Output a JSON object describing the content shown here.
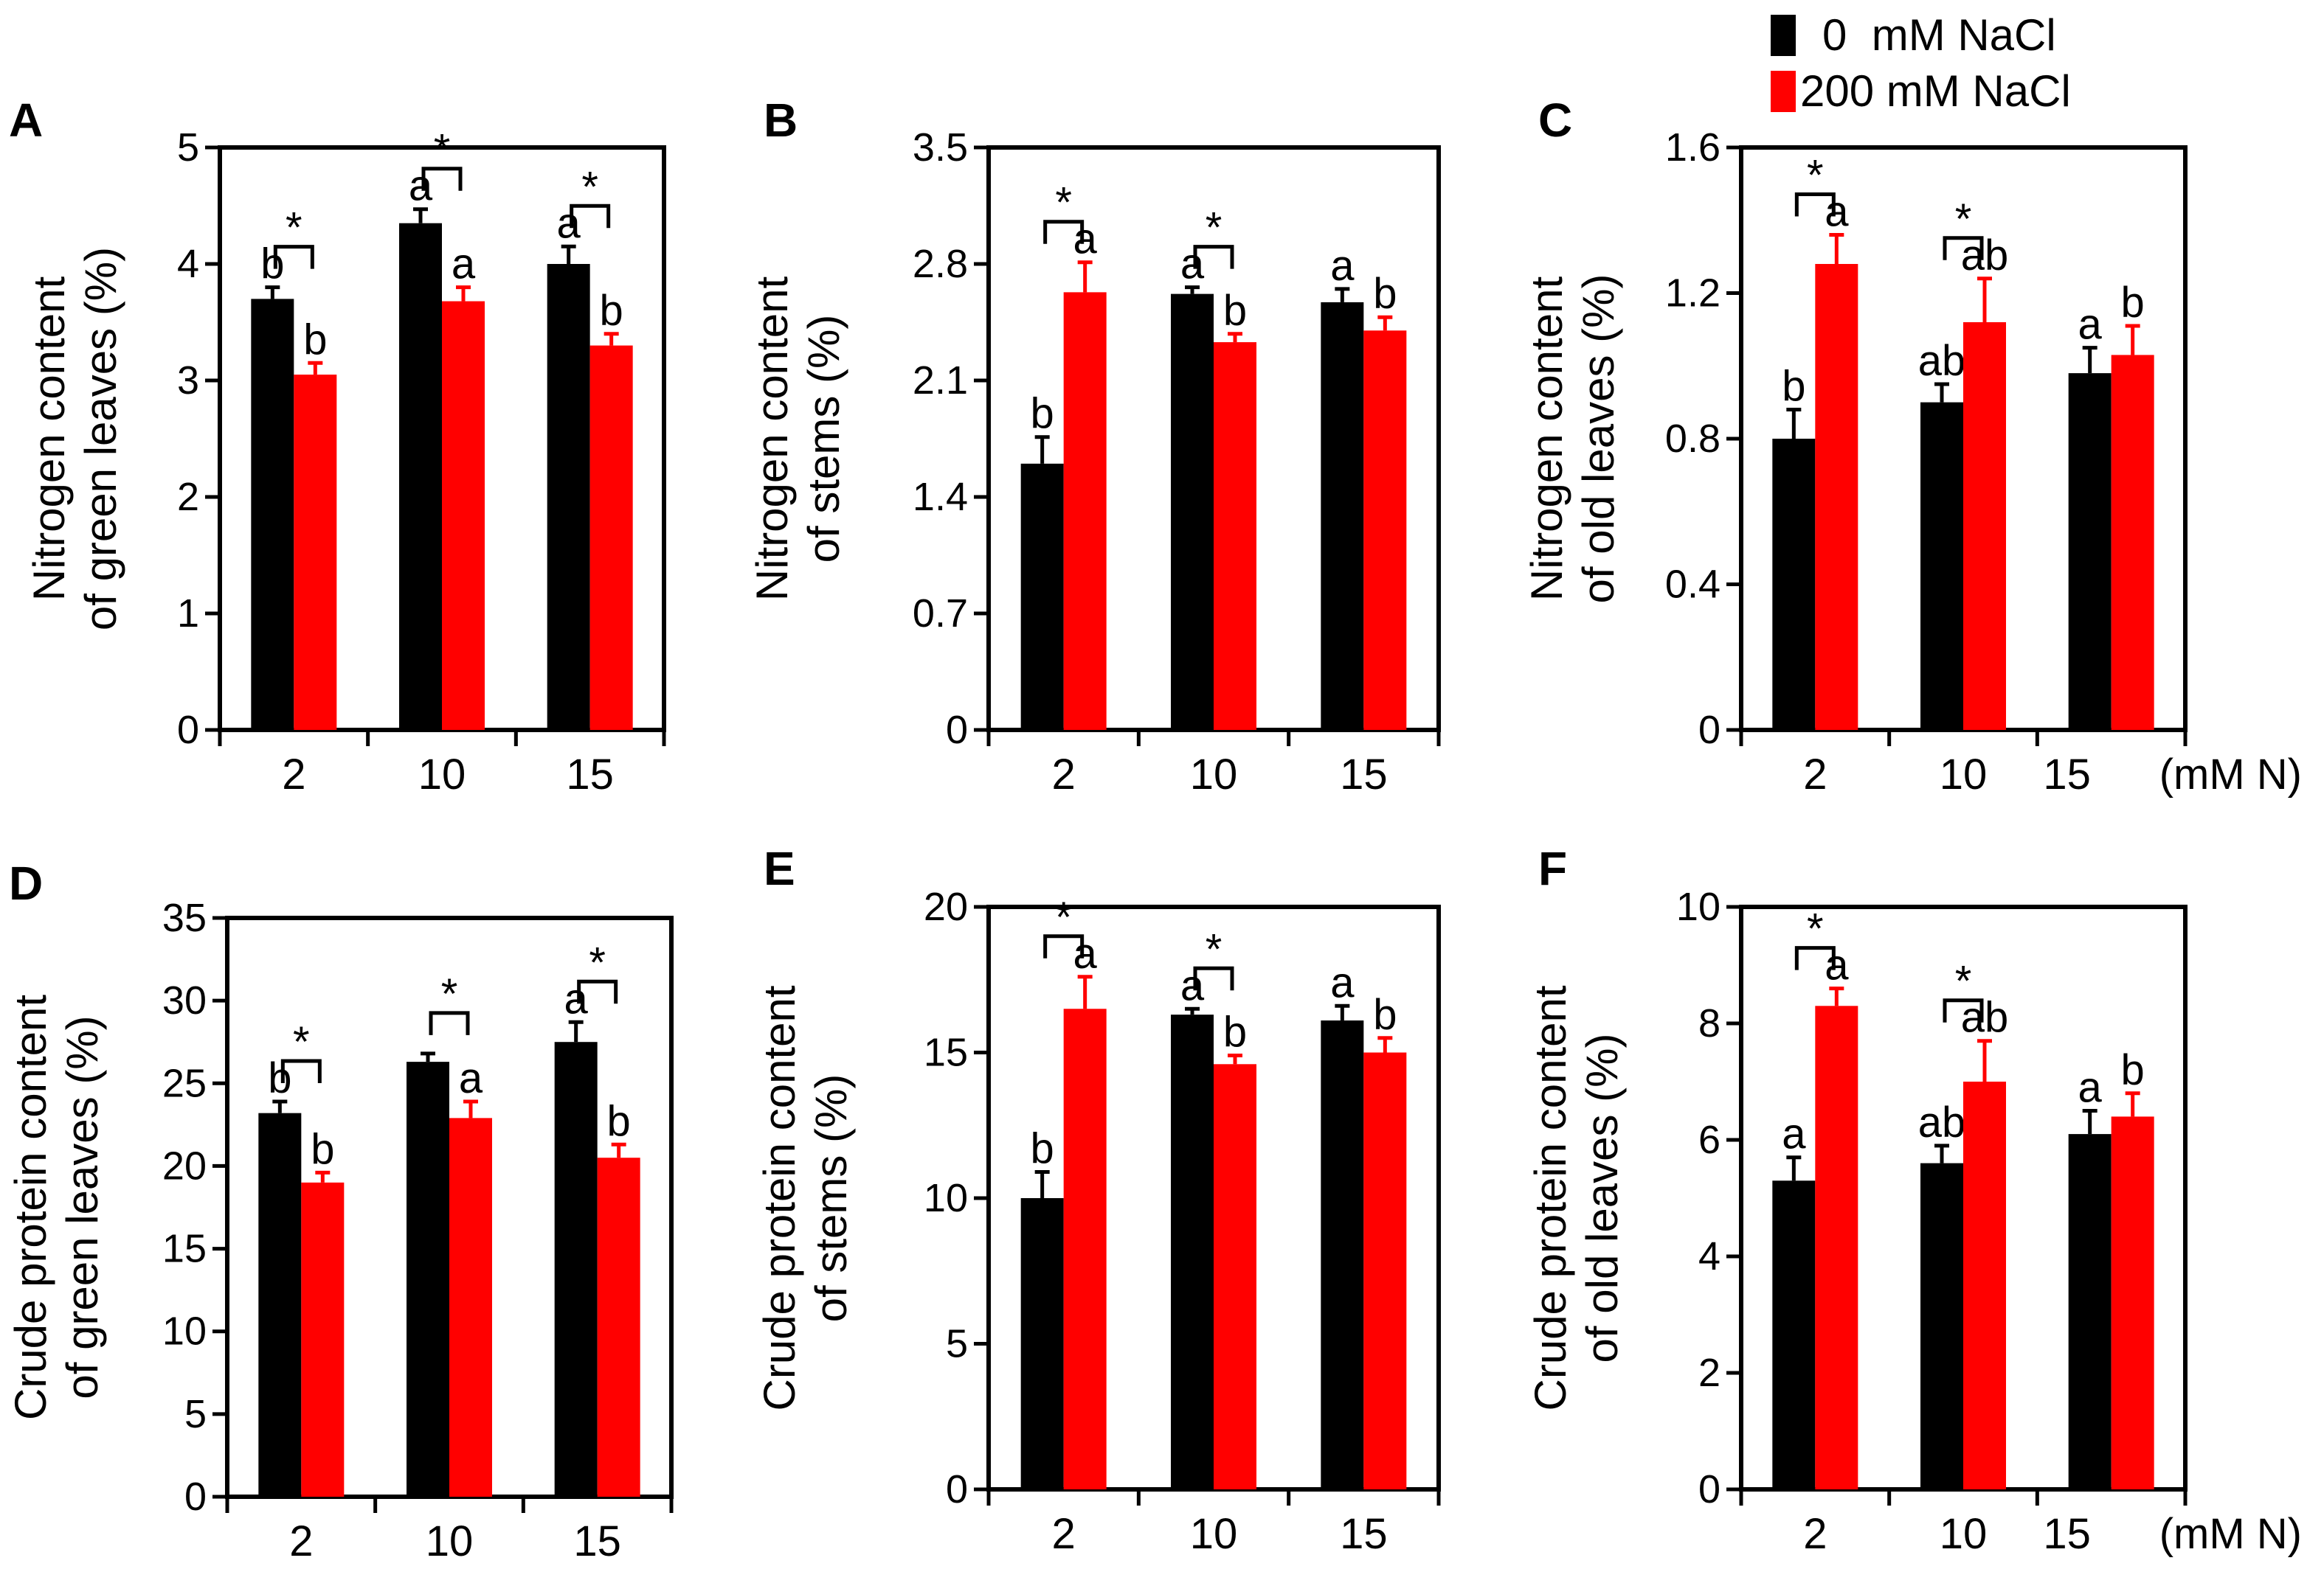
{
  "legend": {
    "items": [
      {
        "label": "0  mM NaCl",
        "color": "#000000"
      },
      {
        "label": "200 mM NaCl",
        "color": "#ff0000"
      }
    ]
  },
  "colors": {
    "control": "#000000",
    "salt": "#ff0000",
    "axis": "#000000"
  },
  "chart_data": [
    {
      "id": "A",
      "type": "bar",
      "panel": "A",
      "ylabel": [
        "Nitrogen content",
        "of green leaves (%)"
      ],
      "categories": [
        "2",
        "10",
        "15"
      ],
      "unit_label": "",
      "ylim": [
        0,
        5
      ],
      "yticks": [
        "0",
        "1",
        "2",
        "3",
        "4",
        "5"
      ],
      "series": [
        {
          "name": "0  mM NaCl",
          "values": [
            3.7,
            4.35,
            4.0
          ],
          "errors": [
            0.1,
            0.12,
            0.15
          ],
          "letters": [
            "b",
            "a",
            "a"
          ]
        },
        {
          "name": "200 mM NaCl",
          "values": [
            3.05,
            3.68,
            3.3
          ],
          "errors": [
            0.1,
            0.12,
            0.1
          ],
          "letters": [
            "b",
            "a",
            "b"
          ]
        }
      ],
      "significance": [
        "*",
        "*",
        "*"
      ]
    },
    {
      "id": "B",
      "type": "bar",
      "panel": "B",
      "ylabel": [
        "Nitrogen content",
        "of stems (%)"
      ],
      "categories": [
        "2",
        "10",
        "15"
      ],
      "unit_label": "",
      "ylim": [
        0,
        3.5
      ],
      "yticks": [
        "0",
        "0.7",
        "1.4",
        "2.1",
        "2.8",
        "3.5"
      ],
      "series": [
        {
          "name": "0  mM NaCl",
          "values": [
            1.6,
            2.62,
            2.57
          ],
          "errors": [
            0.16,
            0.04,
            0.08
          ],
          "letters": [
            "b",
            "a",
            "a"
          ]
        },
        {
          "name": "200 mM NaCl",
          "values": [
            2.63,
            2.33,
            2.4
          ],
          "errors": [
            0.18,
            0.05,
            0.08
          ],
          "letters": [
            "a",
            "b",
            "b"
          ]
        }
      ],
      "significance": [
        "*",
        "*",
        ""
      ]
    },
    {
      "id": "C",
      "type": "bar",
      "panel": "C",
      "ylabel": [
        "Nitrogen content",
        "of old leaves (%)"
      ],
      "categories": [
        "2",
        "10",
        "15"
      ],
      "unit_label": "(mM N)",
      "ylim": [
        0,
        1.6
      ],
      "yticks": [
        "0",
        "0.4",
        "0.8",
        "1.2",
        "1.6"
      ],
      "series": [
        {
          "name": "0  mM NaCl",
          "values": [
            0.8,
            0.9,
            0.98
          ],
          "errors": [
            0.08,
            0.05,
            0.07
          ],
          "letters": [
            "b",
            "ab",
            "a"
          ]
        },
        {
          "name": "200 mM NaCl",
          "values": [
            1.28,
            1.12,
            1.03
          ],
          "errors": [
            0.08,
            0.12,
            0.08
          ],
          "letters": [
            "a",
            "ab",
            "b"
          ]
        }
      ],
      "significance": [
        "*",
        "*",
        ""
      ]
    },
    {
      "id": "D",
      "type": "bar",
      "panel": "D",
      "ylabel": [
        "Crude protein content",
        "of green leaves (%)"
      ],
      "categories": [
        "2",
        "10",
        "15"
      ],
      "unit_label": "",
      "ylim": [
        0,
        35
      ],
      "yticks": [
        "0",
        "5",
        "10",
        "15",
        "20",
        "25",
        "30",
        "35"
      ],
      "series": [
        {
          "name": "0  mM NaCl",
          "values": [
            23.2,
            26.3,
            27.5
          ],
          "errors": [
            0.7,
            0.5,
            1.2
          ],
          "letters": [
            "b",
            "",
            "a"
          ]
        },
        {
          "name": "200 mM NaCl",
          "values": [
            19.0,
            22.9,
            20.5
          ],
          "errors": [
            0.6,
            1.0,
            0.8
          ],
          "letters": [
            "b",
            "a",
            "b"
          ]
        }
      ],
      "significance": [
        "*",
        "*",
        "*"
      ]
    },
    {
      "id": "E",
      "type": "bar",
      "panel": "E",
      "ylabel": [
        "Crude protein content",
        "of stems (%)"
      ],
      "categories": [
        "2",
        "10",
        "15"
      ],
      "unit_label": "",
      "ylim": [
        0,
        20
      ],
      "yticks": [
        "0",
        "5",
        "10",
        "15",
        "20"
      ],
      "series": [
        {
          "name": "0  mM NaCl",
          "values": [
            10.0,
            16.3,
            16.1
          ],
          "errors": [
            0.9,
            0.2,
            0.5
          ],
          "letters": [
            "b",
            "a",
            "a"
          ]
        },
        {
          "name": "200 mM NaCl",
          "values": [
            16.5,
            14.6,
            15.0
          ],
          "errors": [
            1.1,
            0.3,
            0.5
          ],
          "letters": [
            "a",
            "b",
            "b"
          ]
        }
      ],
      "significance": [
        "*",
        "*",
        ""
      ]
    },
    {
      "id": "F",
      "type": "bar",
      "panel": "F",
      "ylabel": [
        "Crude protein content",
        "of old leaves (%)"
      ],
      "categories": [
        "2",
        "10",
        "15"
      ],
      "unit_label": "(mM N)",
      "ylim": [
        0,
        10
      ],
      "yticks": [
        "0",
        "2",
        "4",
        "6",
        "8",
        "10"
      ],
      "series": [
        {
          "name": "0  mM NaCl",
          "values": [
            5.3,
            5.6,
            6.1
          ],
          "errors": [
            0.4,
            0.3,
            0.4
          ],
          "letters": [
            "a",
            "ab",
            "a"
          ]
        },
        {
          "name": "200 mM NaCl",
          "values": [
            8.3,
            7.0,
            6.4
          ],
          "errors": [
            0.3,
            0.7,
            0.4
          ],
          "letters": [
            "a",
            "ab",
            "b"
          ]
        }
      ],
      "significance": [
        "*",
        "*",
        ""
      ]
    }
  ]
}
